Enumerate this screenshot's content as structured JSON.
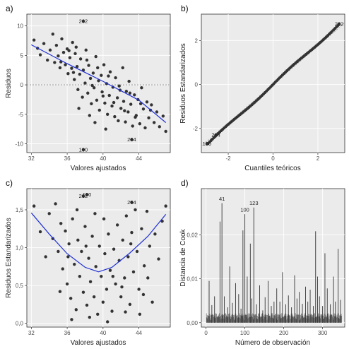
{
  "figure": {
    "panels": [
      "a)",
      "b)",
      "c)",
      "d)"
    ]
  },
  "chart_data": [
    {
      "id": "a",
      "type": "scatter",
      "panel_label": "a)",
      "xlabel": "Valores ajustados",
      "ylabel": "Residuos",
      "xlim": [
        31.5,
        47.5
      ],
      "ylim": [
        -11.5,
        12
      ],
      "xticks": [
        32,
        36,
        40,
        44
      ],
      "yticks": [
        -10,
        -5,
        0,
        5,
        10
      ],
      "reference_line_y": 0,
      "smooth": [
        [
          32,
          6.8
        ],
        [
          36,
          3.6
        ],
        [
          40,
          0.6
        ],
        [
          44,
          -2.6
        ],
        [
          47,
          -6.4
        ]
      ],
      "labeled_points": [
        {
          "label": "262",
          "x": 37.8,
          "y": 10.8
        },
        {
          "label": "100",
          "x": 37.8,
          "y": -11.0
        },
        {
          "label": "264",
          "x": 43.2,
          "y": -9.3
        }
      ],
      "points": [
        [
          32.3,
          7.6
        ],
        [
          32.7,
          6.2
        ],
        [
          33.0,
          5.1
        ],
        [
          33.4,
          7.0
        ],
        [
          33.8,
          4.2
        ],
        [
          34.1,
          5.9
        ],
        [
          34.4,
          8.6
        ],
        [
          34.6,
          3.8
        ],
        [
          34.8,
          6.7
        ],
        [
          35.0,
          4.9
        ],
        [
          35.2,
          2.9
        ],
        [
          35.4,
          7.8
        ],
        [
          35.6,
          5.5
        ],
        [
          35.8,
          3.4
        ],
        [
          36.0,
          6.1
        ],
        [
          36.1,
          1.9
        ],
        [
          36.3,
          4.6
        ],
        [
          36.5,
          2.8
        ],
        [
          36.6,
          7.2
        ],
        [
          36.8,
          0.9
        ],
        [
          36.9,
          5.3
        ],
        [
          37.1,
          3.1
        ],
        [
          37.2,
          -0.8
        ],
        [
          37.4,
          1.8
        ],
        [
          37.5,
          4.4
        ],
        [
          37.7,
          -2.1
        ],
        [
          37.8,
          2.5
        ],
        [
          38.0,
          0.3
        ],
        [
          38.1,
          5.9
        ],
        [
          38.3,
          -1.4
        ],
        [
          38.4,
          3.3
        ],
        [
          38.6,
          1.1
        ],
        [
          38.7,
          -3.2
        ],
        [
          38.9,
          2.0
        ],
        [
          39.0,
          -0.5
        ],
        [
          39.2,
          4.8
        ],
        [
          39.3,
          -2.6
        ],
        [
          39.5,
          0.7
        ],
        [
          39.6,
          -4.3
        ],
        [
          39.8,
          1.6
        ],
        [
          39.9,
          -1.2
        ],
        [
          40.1,
          3.4
        ],
        [
          40.2,
          -3.1
        ],
        [
          40.4,
          0.2
        ],
        [
          40.5,
          -5.0
        ],
        [
          40.7,
          -1.8
        ],
        [
          40.8,
          2.2
        ],
        [
          41.0,
          -3.6
        ],
        [
          41.1,
          -0.4
        ],
        [
          41.3,
          -5.4
        ],
        [
          41.4,
          1.2
        ],
        [
          41.6,
          -2.2
        ],
        [
          41.7,
          -6.1
        ],
        [
          41.9,
          -0.9
        ],
        [
          42.0,
          -4.0
        ],
        [
          42.2,
          2.9
        ],
        [
          42.3,
          -2.8
        ],
        [
          42.5,
          -6.3
        ],
        [
          42.6,
          -1.1
        ],
        [
          42.8,
          -4.6
        ],
        [
          42.9,
          0.6
        ],
        [
          43.1,
          -3.3
        ],
        [
          43.3,
          -7.0
        ],
        [
          43.5,
          -1.7
        ],
        [
          43.7,
          -5.2
        ],
        [
          43.9,
          -2.5
        ],
        [
          44.1,
          -6.6
        ],
        [
          44.3,
          -0.5
        ],
        [
          44.5,
          -4.1
        ],
        [
          44.7,
          -7.3
        ],
        [
          44.9,
          -2.9
        ],
        [
          45.1,
          -5.6
        ],
        [
          45.4,
          -3.4
        ],
        [
          45.7,
          -6.4
        ],
        [
          46.0,
          -4.6
        ],
        [
          46.3,
          -7.1
        ],
        [
          46.7,
          -5.3
        ],
        [
          47.0,
          -7.9
        ],
        [
          36.2,
          5.8
        ],
        [
          37.0,
          6.4
        ],
        [
          38.2,
          4.2
        ],
        [
          39.4,
          2.9
        ],
        [
          40.6,
          1.5
        ],
        [
          41.8,
          -0.2
        ],
        [
          43.0,
          -1.4
        ],
        [
          44.2,
          -3.2
        ],
        [
          45.3,
          -4.3
        ],
        [
          35.3,
          3.9
        ],
        [
          36.7,
          2.1
        ],
        [
          38.8,
          -0.1
        ],
        [
          40.0,
          -1.9
        ],
        [
          41.2,
          -3.0
        ],
        [
          42.4,
          -4.4
        ],
        [
          43.6,
          -5.5
        ],
        [
          39.1,
          -6.4
        ],
        [
          40.3,
          -7.5
        ],
        [
          37.3,
          -4.0
        ],
        [
          38.5,
          -5.2
        ]
      ]
    },
    {
      "id": "b",
      "type": "scatter",
      "panel_label": "b)",
      "xlabel": "Cuantiles teóricos",
      "ylabel": "Residuos Estandarizados",
      "xlim": [
        -3.2,
        3.2
      ],
      "ylim": [
        -3.1,
        3.2
      ],
      "xticks": [
        -2,
        0,
        2
      ],
      "yticks": [
        -2,
        0,
        2
      ],
      "labeled_points": [
        {
          "label": "262",
          "x": 2.95,
          "y": 2.75
        },
        {
          "label": "264",
          "x": -2.55,
          "y": -2.3
        },
        {
          "label": "100",
          "x": -2.95,
          "y": -2.7
        }
      ],
      "reference_line": [
        [
          -3.2,
          -2.8
        ],
        [
          3.2,
          2.8
        ]
      ],
      "qq": {
        "from": -2.9,
        "to": 2.9,
        "n": 90
      }
    },
    {
      "id": "c",
      "type": "scatter",
      "panel_label": "c)",
      "xlabel": "Valores ajustados",
      "ylabel": "Residuos Estandarizados",
      "xlim": [
        31.5,
        47.5
      ],
      "ylim": [
        -0.05,
        1.78
      ],
      "xticks": [
        32,
        36,
        40,
        44
      ],
      "yticks": [
        0.0,
        0.5,
        1.0,
        1.5
      ],
      "ytick_labels": [
        "0,0",
        "0,5",
        "1,0",
        "1,5"
      ],
      "smooth": [
        [
          32,
          1.46
        ],
        [
          34,
          1.18
        ],
        [
          36,
          0.92
        ],
        [
          38,
          0.74
        ],
        [
          39.5,
          0.68
        ],
        [
          41,
          0.74
        ],
        [
          43,
          0.93
        ],
        [
          45,
          1.15
        ],
        [
          47,
          1.44
        ]
      ],
      "labeled_points": [
        {
          "label": "262",
          "x": 37.8,
          "y": 1.68
        },
        {
          "label": "100",
          "x": 38.2,
          "y": 1.7
        },
        {
          "label": "264",
          "x": 43.2,
          "y": 1.6
        }
      ],
      "points": [
        [
          32.3,
          1.55
        ],
        [
          33.0,
          1.21
        ],
        [
          33.6,
          0.88
        ],
        [
          34.0,
          1.45
        ],
        [
          34.4,
          1.12
        ],
        [
          34.7,
          1.58
        ],
        [
          35.0,
          0.95
        ],
        [
          35.3,
          1.32
        ],
        [
          35.5,
          0.72
        ],
        [
          35.8,
          1.22
        ],
        [
          36.0,
          0.52
        ],
        [
          36.2,
          1.05
        ],
        [
          36.4,
          0.33
        ],
        [
          36.6,
          1.38
        ],
        [
          36.8,
          0.78
        ],
        [
          37.0,
          0.18
        ],
        [
          37.2,
          1.1
        ],
        [
          37.4,
          0.62
        ],
        [
          37.6,
          0.95
        ],
        [
          37.8,
          0.41
        ],
        [
          38.0,
          1.28
        ],
        [
          38.2,
          0.24
        ],
        [
          38.4,
          0.86
        ],
        [
          38.6,
          0.55
        ],
        [
          38.8,
          1.15
        ],
        [
          39.0,
          0.35
        ],
        [
          39.2,
          0.75
        ],
        [
          39.4,
          0.12
        ],
        [
          39.6,
          1.02
        ],
        [
          39.8,
          0.62
        ],
        [
          40.0,
          0.28
        ],
        [
          40.2,
          0.92
        ],
        [
          40.4,
          0.45
        ],
        [
          40.6,
          1.18
        ],
        [
          40.8,
          0.7
        ],
        [
          41.0,
          0.16
        ],
        [
          41.2,
          0.98
        ],
        [
          41.4,
          0.52
        ],
        [
          41.6,
          1.3
        ],
        [
          41.8,
          0.83
        ],
        [
          42.0,
          0.35
        ],
        [
          42.2,
          1.1
        ],
        [
          42.4,
          0.6
        ],
        [
          42.6,
          1.42
        ],
        [
          42.8,
          0.88
        ],
        [
          43.0,
          0.25
        ],
        [
          43.2,
          1.2
        ],
        [
          43.4,
          0.68
        ],
        [
          43.6,
          1.5
        ],
        [
          43.8,
          0.95
        ],
        [
          44.0,
          0.45
        ],
        [
          44.3,
          1.25
        ],
        [
          44.6,
          0.76
        ],
        [
          44.9,
          1.48
        ],
        [
          45.2,
          1.02
        ],
        [
          45.5,
          0.28
        ],
        [
          45.8,
          1.18
        ],
        [
          46.2,
          0.85
        ],
        [
          46.6,
          1.35
        ],
        [
          47.0,
          1.55
        ],
        [
          36.1,
          0.88
        ],
        [
          37.1,
          1.5
        ],
        [
          38.1,
          1.02
        ],
        [
          39.1,
          1.45
        ],
        [
          40.1,
          1.38
        ],
        [
          41.1,
          0.62
        ],
        [
          42.1,
          0.48
        ],
        [
          43.1,
          1.05
        ],
        [
          44.1,
          0.12
        ],
        [
          45.0,
          0.6
        ],
        [
          35.2,
          0.42
        ],
        [
          36.5,
          0.05
        ],
        [
          38.5,
          0.08
        ],
        [
          40.5,
          0.02
        ],
        [
          42.5,
          0.15
        ],
        [
          44.5,
          0.38
        ]
      ]
    },
    {
      "id": "d",
      "type": "bar",
      "panel_label": "d)",
      "xlabel": "Número de observación",
      "ylabel": "Distancia de Cook",
      "xlim": [
        -12,
        357
      ],
      "ylim": [
        -0.001,
        0.0305
      ],
      "xticks": [
        0,
        100,
        200,
        300
      ],
      "yticks": [
        0.0,
        0.01,
        0.02
      ],
      "ytick_labels": [
        "0,00",
        "0,01",
        "0,02"
      ],
      "labeled_points": [
        {
          "label": "41",
          "x": 41,
          "y": 0.0278
        },
        {
          "label": "100",
          "x": 100,
          "y": 0.0253
        },
        {
          "label": "123",
          "x": 123,
          "y": 0.0268
        }
      ],
      "spikes": [
        [
          8,
          0.0095
        ],
        [
          15,
          0.004
        ],
        [
          22,
          0.006
        ],
        [
          30,
          0.0012
        ],
        [
          36,
          0.023
        ],
        [
          41,
          0.0272
        ],
        [
          47,
          0.006
        ],
        [
          56,
          0.0035
        ],
        [
          61,
          0.0128
        ],
        [
          68,
          0.0045
        ],
        [
          76,
          0.009
        ],
        [
          84,
          0.0065
        ],
        [
          90,
          0.0032
        ],
        [
          95,
          0.021
        ],
        [
          100,
          0.0247
        ],
        [
          106,
          0.0105
        ],
        [
          114,
          0.018
        ],
        [
          118,
          0.0055
        ],
        [
          123,
          0.0262
        ],
        [
          130,
          0.0042
        ],
        [
          138,
          0.0085
        ],
        [
          146,
          0.0028
        ],
        [
          152,
          0.0058
        ],
        [
          160,
          0.0095
        ],
        [
          168,
          0.0038
        ],
        [
          175,
          0.0048
        ],
        [
          182,
          0.0078
        ],
        [
          190,
          0.0048
        ],
        [
          197,
          0.0115
        ],
        [
          205,
          0.0042
        ],
        [
          212,
          0.0062
        ],
        [
          220,
          0.0035
        ],
        [
          228,
          0.0108
        ],
        [
          234,
          0.0055
        ],
        [
          240,
          0.007
        ],
        [
          248,
          0.0043
        ],
        [
          256,
          0.0082
        ],
        [
          262,
          0.0048
        ],
        [
          268,
          0.0075
        ],
        [
          276,
          0.0038
        ],
        [
          282,
          0.0208
        ],
        [
          287,
          0.0105
        ],
        [
          292,
          0.006
        ],
        [
          300,
          0.0038
        ],
        [
          306,
          0.0158
        ],
        [
          312,
          0.0078
        ],
        [
          320,
          0.0042
        ],
        [
          328,
          0.0105
        ],
        [
          333,
          0.0048
        ],
        [
          340,
          0.0168
        ],
        [
          346,
          0.0052
        ]
      ],
      "n_obs": 349
    }
  ]
}
